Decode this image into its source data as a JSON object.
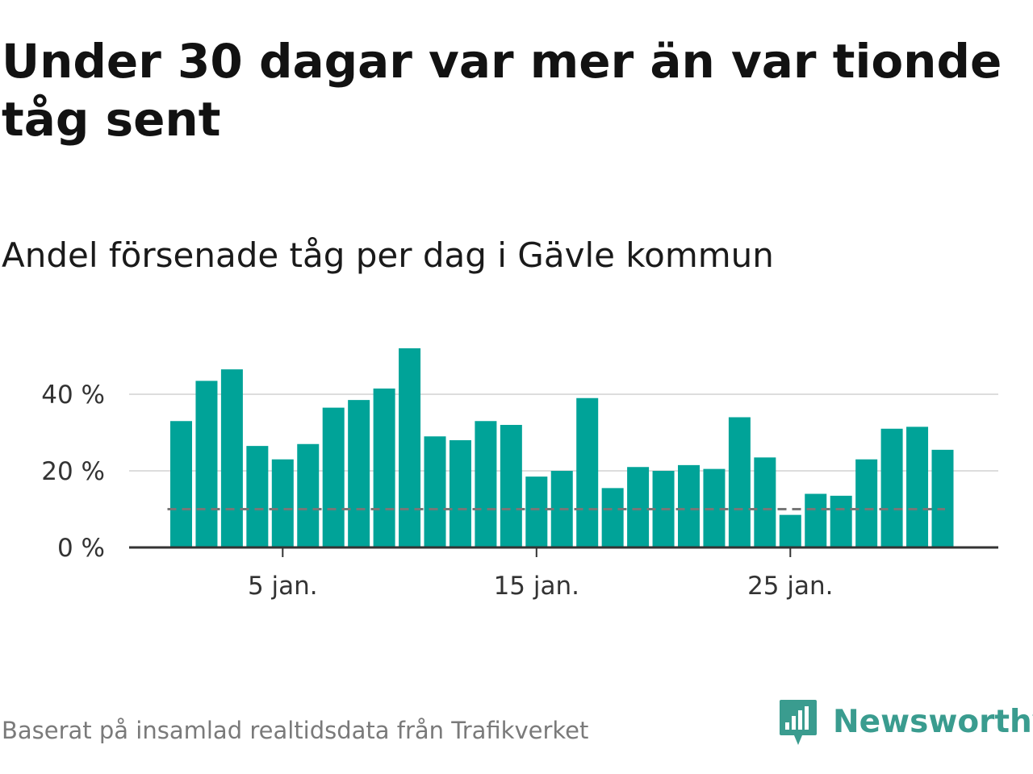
{
  "title": "Under 30 dagar var mer än var tionde tåg sent",
  "subtitle": "Andel försenade tåg per dag i Gävle kommun",
  "footer": "Baserat på insamlad realtidsdata från Trafikverket",
  "brand": {
    "name": "Newsworthy",
    "icon": "newsworthy-logo-icon",
    "color": "#3a9c8f"
  },
  "colors": {
    "bar": "#00a398",
    "reference_line": "#777777",
    "gridline": "#dddddd",
    "axis": "#333333"
  },
  "chart_data": {
    "type": "bar",
    "x_unit": "day of January",
    "x": [
      1,
      2,
      3,
      4,
      5,
      6,
      7,
      8,
      9,
      10,
      11,
      12,
      13,
      14,
      15,
      16,
      17,
      18,
      19,
      20,
      21,
      22,
      23,
      24,
      25,
      26,
      27,
      28,
      29,
      30,
      31
    ],
    "values": [
      33,
      43.5,
      46.5,
      26.5,
      23,
      27,
      36.5,
      38.5,
      41.5,
      52,
      29,
      28,
      33,
      32,
      18.5,
      20,
      39,
      15.5,
      21,
      20,
      21.5,
      20.5,
      34,
      23.5,
      8.5,
      14,
      13.5,
      23,
      31,
      31.5,
      25.5
    ],
    "reference_line": 10,
    "ylim": [
      0,
      55
    ],
    "yticks": [
      0,
      20,
      40
    ],
    "ytick_labels": [
      "0 %",
      "20 %",
      "40 %"
    ],
    "xticks": [
      5,
      15,
      25
    ],
    "xtick_labels": [
      "5 jan.",
      "15 jan.",
      "25 jan."
    ],
    "grid": "horizontal",
    "legend": "none"
  }
}
